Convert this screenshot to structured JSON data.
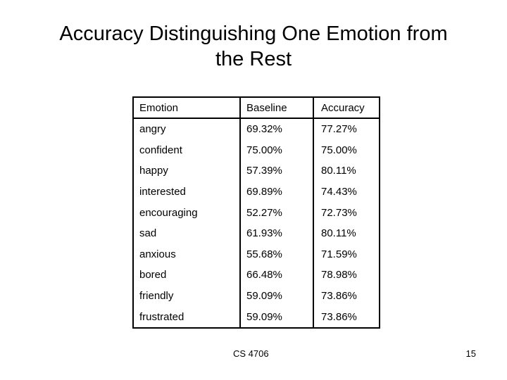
{
  "slide": {
    "title_line1": "Accuracy Distinguishing One Emotion from",
    "title_line2": "the Rest",
    "footer": "CS 4706",
    "page_number": "15"
  },
  "table": {
    "headers": [
      "Emotion",
      "Baseline",
      "Accuracy"
    ],
    "rows": [
      [
        "angry",
        "69.32%",
        "77.27%"
      ],
      [
        "confident",
        "75.00%",
        "75.00%"
      ],
      [
        "happy",
        "57.39%",
        "80.11%"
      ],
      [
        "interested",
        "69.89%",
        "74.43%"
      ],
      [
        "encouraging",
        "52.27%",
        "72.73%"
      ],
      [
        "sad",
        "61.93%",
        "80.11%"
      ],
      [
        "anxious",
        "55.68%",
        "71.59%"
      ],
      [
        "bored",
        "66.48%",
        "78.98%"
      ],
      [
        "friendly",
        "59.09%",
        "73.86%"
      ],
      [
        "frustrated",
        "59.09%",
        "73.86%"
      ]
    ]
  }
}
